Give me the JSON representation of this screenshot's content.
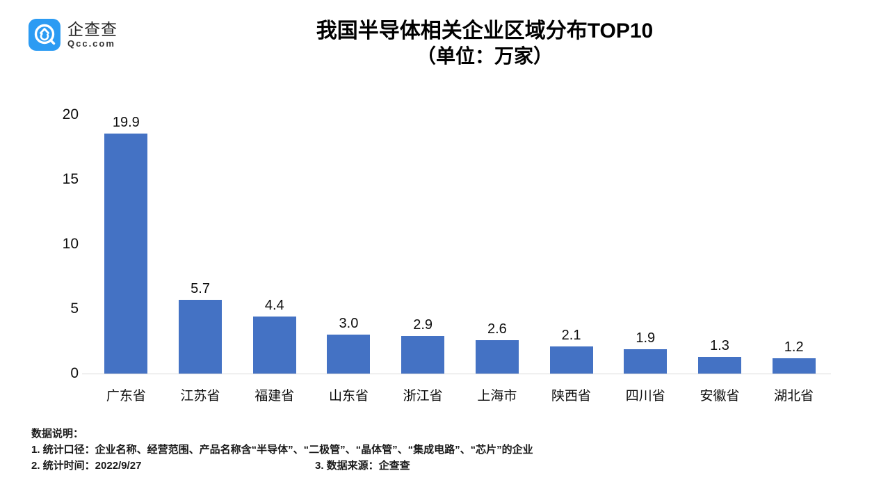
{
  "logo": {
    "name": "企查查",
    "domain": "Qcc.com",
    "brand_color": "#2b9bf3"
  },
  "title": {
    "line1": "我国半导体相关企业区域分布TOP10",
    "line2": "（单位：万家）"
  },
  "chart_data": {
    "type": "bar",
    "title": "我国半导体相关企业区域分布TOP10（单位：万家）",
    "categories": [
      "广东省",
      "江苏省",
      "福建省",
      "山东省",
      "浙江省",
      "上海市",
      "陕西省",
      "四川省",
      "安徽省",
      "湖北省"
    ],
    "values": [
      19.9,
      5.7,
      4.4,
      3.0,
      2.9,
      2.6,
      2.1,
      1.9,
      1.3,
      1.2
    ],
    "value_decimals": 1,
    "xlabel": "",
    "ylabel": "",
    "ylim": [
      0,
      20
    ],
    "yticks": [
      0,
      5,
      10,
      15,
      20
    ],
    "bar_color": "#4472c4",
    "axis_line_color": "#d9d9d9",
    "grid": false,
    "legend": false,
    "value_labels": true
  },
  "notes": {
    "heading": "数据说明：",
    "line1": "1. 统计口径：企业名称、经营范围、产品名称含“半导体”、“二极管”、“晶体管”、“集成电路”、“芯片”的企业",
    "line2a": "2. 统计时间：2022/9/27",
    "line2b": "3. 数据来源：企查查"
  }
}
